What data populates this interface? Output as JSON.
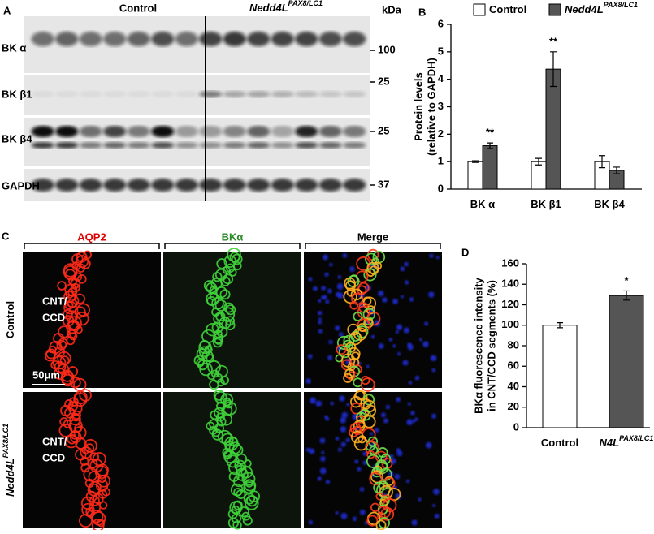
{
  "panel_a": {
    "label": "A",
    "groups": [
      {
        "name": "Control"
      },
      {
        "name": "Nedd4L",
        "superscript": "PAX8/LC1"
      }
    ],
    "unit": "kDa",
    "rows": [
      {
        "label": "BK α",
        "marker": "100"
      },
      {
        "label": "BK β1",
        "marker": "25"
      },
      {
        "label": "BK β4",
        "marker": "25"
      },
      {
        "label": "GAPDH",
        "marker": "37"
      }
    ]
  },
  "panel_c": {
    "label": "C",
    "columns": [
      "AQP2",
      "BKα",
      "Merge"
    ],
    "rows": [
      {
        "name": "Control",
        "region": [
          "CNT/",
          "CCD"
        ]
      },
      {
        "name": "Nedd4L",
        "superscript": "PAX8/LC1",
        "region": [
          "CNT/",
          "CCD"
        ]
      }
    ],
    "scale_bar": "50μm"
  },
  "chart_data": [
    {
      "type": "bar",
      "panel_label": "B",
      "ylabel": [
        "Protein levels",
        "(relative to GAPDH)"
      ],
      "categories": [
        "BK α",
        "BK β1",
        "BK β4"
      ],
      "series": [
        {
          "name": "Control",
          "color": "#ffffff",
          "values": [
            1.0,
            1.0,
            1.0
          ],
          "errors": [
            0.03,
            0.12,
            0.22
          ]
        },
        {
          "name": "Nedd4L",
          "superscript": "PAX8/LC1",
          "color": "#555555",
          "values": [
            1.58,
            4.37,
            0.68
          ],
          "errors": [
            0.1,
            0.63,
            0.12
          ]
        }
      ],
      "annotations": [
        {
          "text": "**",
          "category": "BK α"
        },
        {
          "text": "**",
          "category": "BK β1"
        }
      ],
      "ylim": [
        0,
        6
      ],
      "yticks": [
        0,
        1,
        2,
        3,
        4,
        5,
        6
      ]
    },
    {
      "type": "bar",
      "panel_label": "D",
      "ylabel": [
        "BKα fluorescence intensity",
        "in CNT/CCD segments (%)"
      ],
      "categories": [
        "Control",
        "N4L"
      ],
      "superscripts": [
        null,
        "PAX8/LC1"
      ],
      "values": [
        100,
        129
      ],
      "errors": [
        2.5,
        4.5
      ],
      "colors": [
        "#ffffff",
        "#555555"
      ],
      "annotations": [
        {
          "text": "*",
          "category": "N4L"
        }
      ],
      "ylim": [
        0,
        160
      ],
      "yticks": [
        0,
        20,
        40,
        60,
        80,
        100,
        120,
        140,
        160
      ]
    }
  ]
}
